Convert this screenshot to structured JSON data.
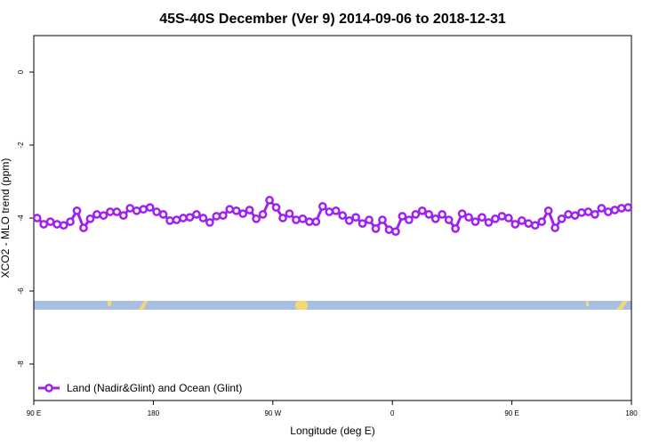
{
  "chart_data": {
    "type": "line",
    "title": "45S-40S December (Ver 9)   2014-09-06 to 2018-12-31",
    "x_label": "Longitude (deg E)",
    "y_label": "XCO2 - MLO trend (ppm)",
    "xlim": [
      90,
      540
    ],
    "xticks": [
      {
        "value": 90,
        "label": "90 E"
      },
      {
        "value": 180,
        "label": "180"
      },
      {
        "value": 270,
        "label": "90 W"
      },
      {
        "value": 360,
        "label": "0"
      },
      {
        "value": 450,
        "label": "90 E"
      },
      {
        "value": 540,
        "label": "180"
      }
    ],
    "ylim": [
      -9,
      1
    ],
    "yticks": [
      0,
      -2,
      -4,
      -6,
      -8
    ],
    "legend": "bottom-left",
    "series": [
      {
        "name": "Land (Nadir&Glint) and Ocean (Glint)",
        "color": "#a020f0",
        "x": [
          92.5,
          97.5,
          102.5,
          107.5,
          112.5,
          117.5,
          122.5,
          127.5,
          132.5,
          137.5,
          142.5,
          147.5,
          152.5,
          157.5,
          162.5,
          167.5,
          172.5,
          177.5,
          182.5,
          187.5,
          192.5,
          197.5,
          202.5,
          207.5,
          212.5,
          217.5,
          222.5,
          227.5,
          232.5,
          237.5,
          242.5,
          247.5,
          252.5,
          257.5,
          262.5,
          267.5,
          272.5,
          277.5,
          282.5,
          287.5,
          292.5,
          297.5,
          302.5,
          307.5,
          312.5,
          317.5,
          322.5,
          327.5,
          332.5,
          337.5,
          342.5,
          347.5,
          352.5,
          357.5,
          362.5,
          367.5,
          372.5,
          377.5,
          382.5,
          387.5,
          392.5,
          397.5,
          402.5,
          407.5,
          412.5,
          417.5,
          422.5,
          427.5,
          432.5,
          437.5,
          442.5,
          447.5,
          452.5,
          457.5,
          462.5,
          467.5,
          472.5,
          477.5,
          482.5,
          487.5,
          492.5,
          497.5,
          502.5,
          507.5,
          512.5,
          517.5,
          522.5,
          527.5,
          532.5,
          537.5
        ],
        "values": [
          -4.0,
          -4.17,
          -4.1,
          -4.17,
          -4.2,
          -4.1,
          -3.8,
          -4.27,
          -4.02,
          -3.9,
          -3.93,
          -3.83,
          -3.83,
          -3.93,
          -3.73,
          -3.8,
          -3.76,
          -3.71,
          -3.83,
          -3.9,
          -4.07,
          -4.05,
          -4.0,
          -3.98,
          -3.9,
          -4.0,
          -4.12,
          -3.95,
          -3.93,
          -3.76,
          -3.8,
          -3.88,
          -3.78,
          -4.02,
          -3.9,
          -3.51,
          -3.71,
          -4.0,
          -3.88,
          -4.05,
          -4.02,
          -4.1,
          -4.1,
          -3.68,
          -3.83,
          -3.8,
          -3.93,
          -4.07,
          -3.98,
          -4.15,
          -4.05,
          -4.29,
          -4.05,
          -4.32,
          -4.37,
          -3.95,
          -4.05,
          -3.9,
          -3.8,
          -3.9,
          -4.02,
          -3.9,
          -4.05,
          -4.29,
          -3.88,
          -3.98,
          -4.1,
          -3.98,
          -4.12,
          -4.02,
          -3.95,
          -4.0,
          -4.17,
          -4.07,
          -4.15,
          -4.2,
          -4.1,
          -3.8,
          -4.27,
          -4.02,
          -3.9,
          -3.93,
          -3.85,
          -3.83,
          -3.9,
          -3.73,
          -3.83,
          -3.78,
          -3.73,
          -3.71
        ]
      }
    ]
  }
}
